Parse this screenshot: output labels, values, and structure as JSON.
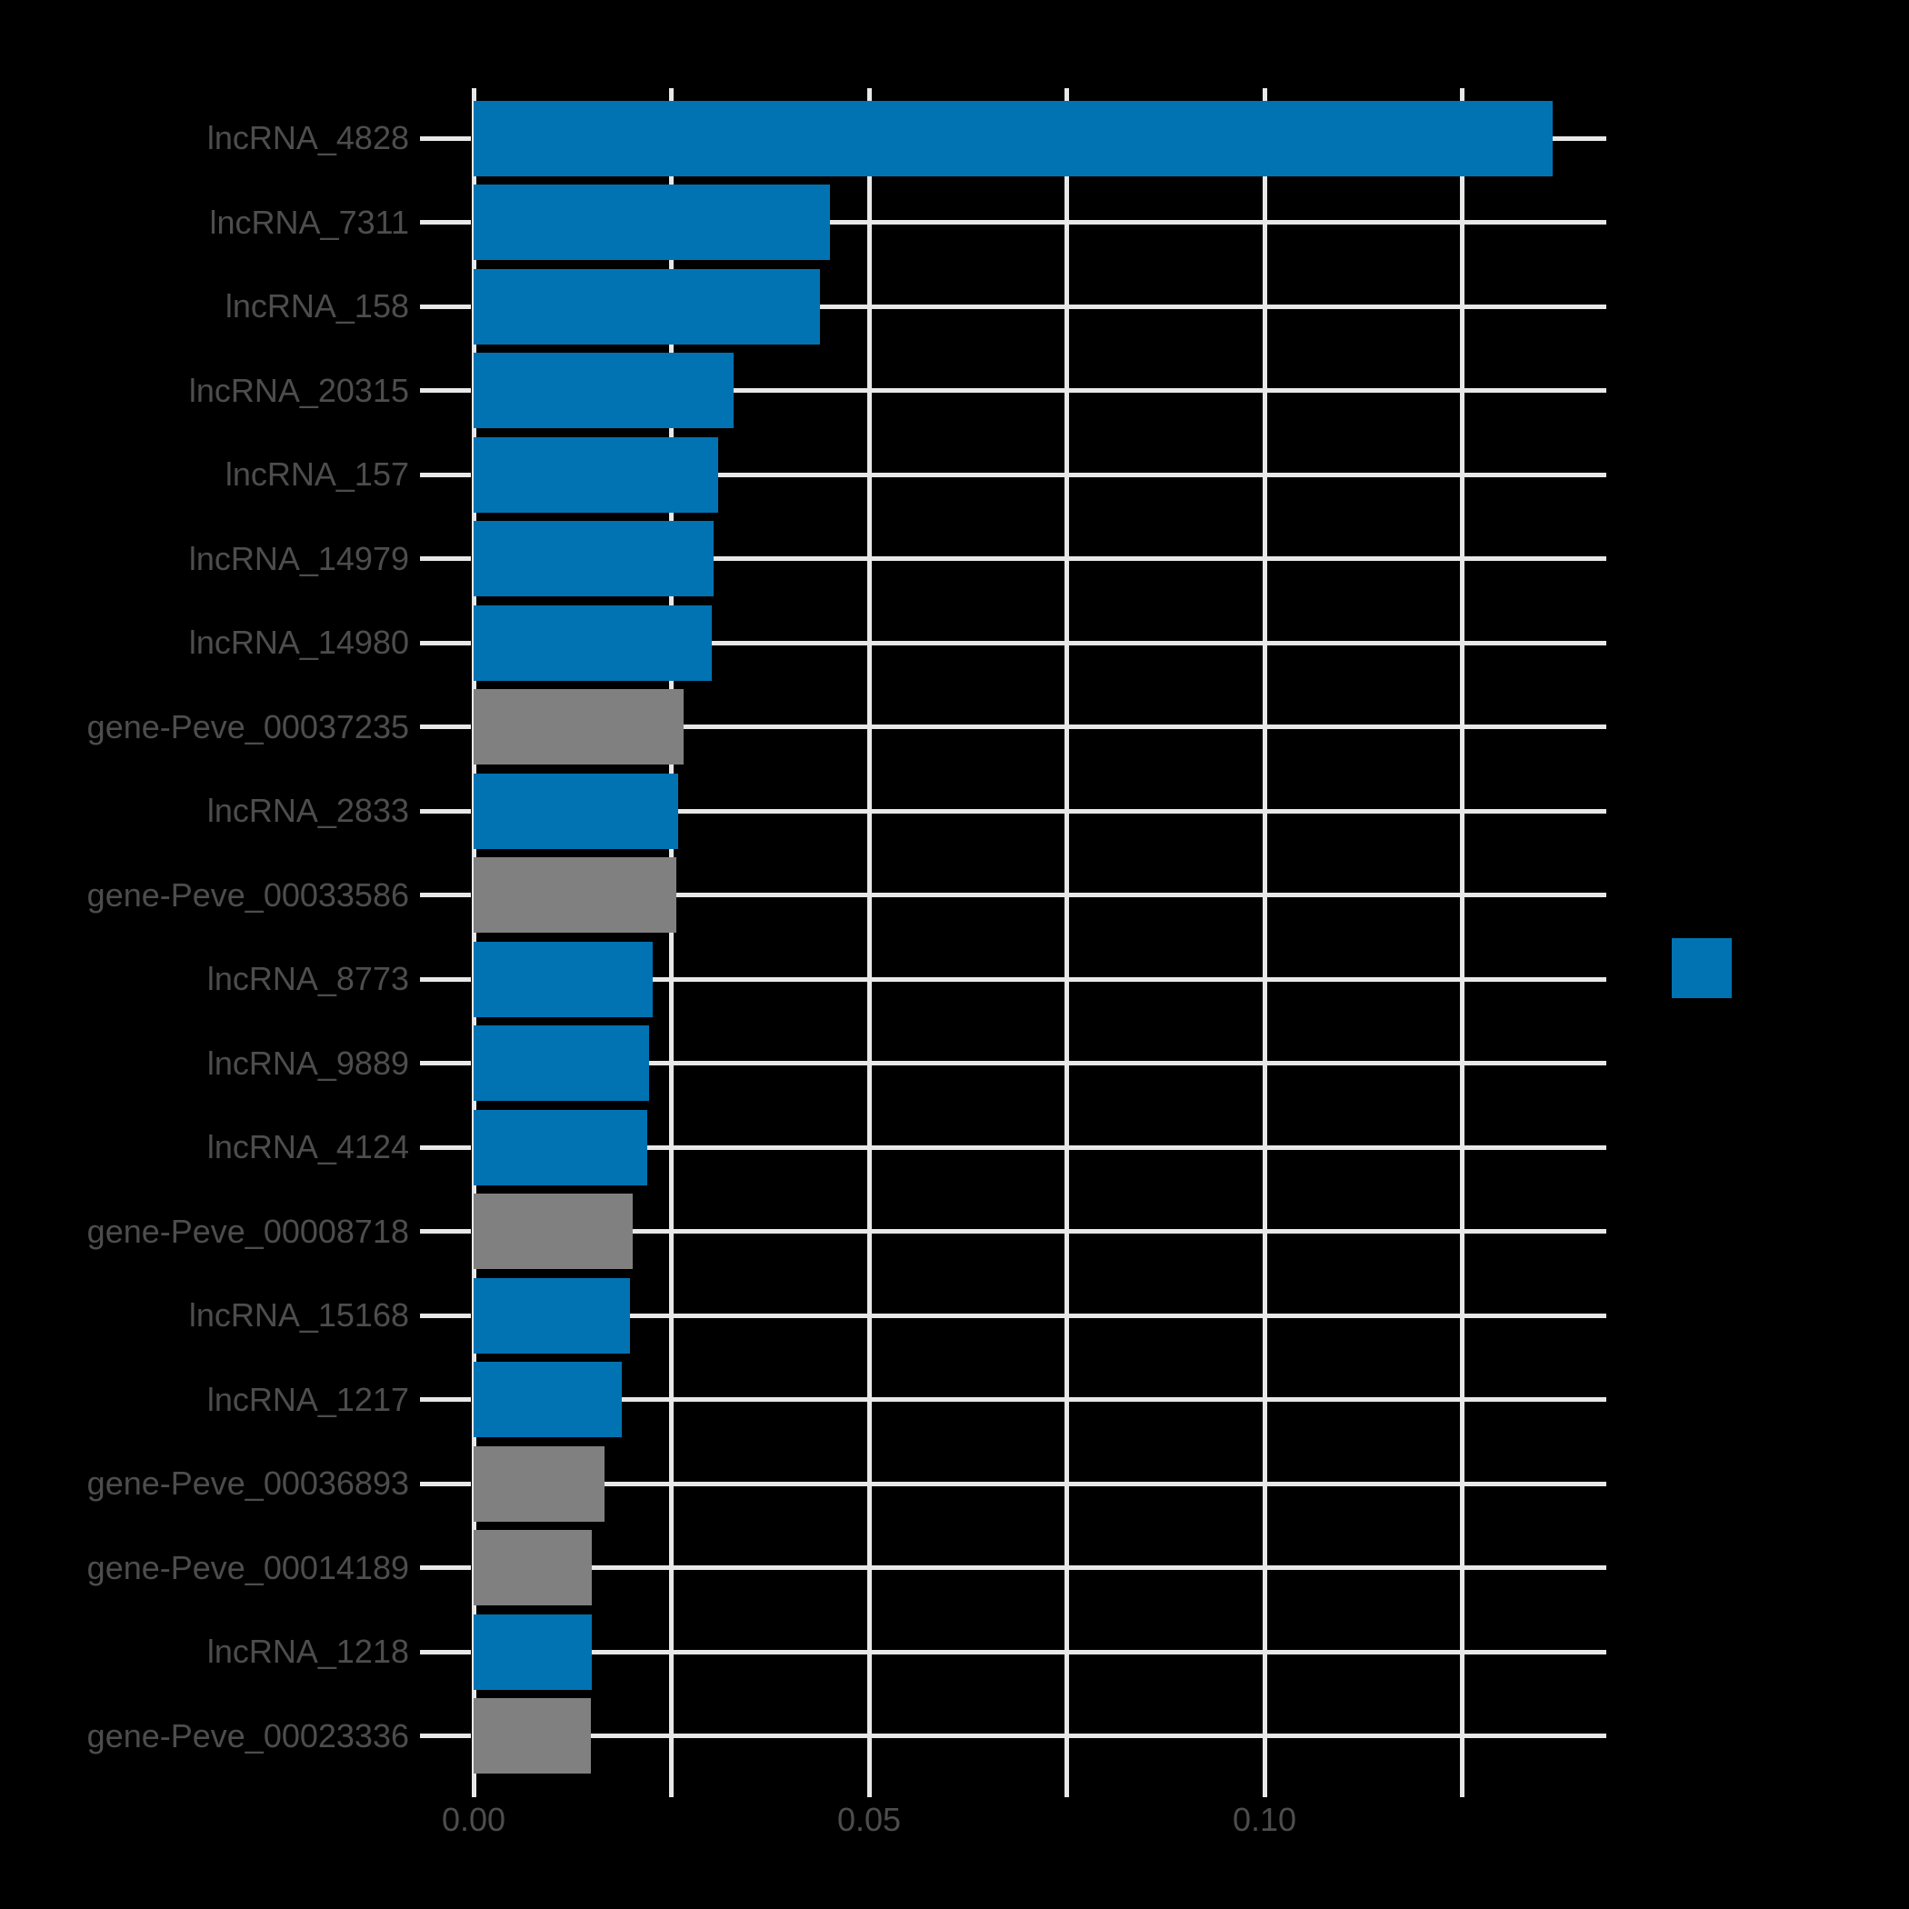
{
  "figure": {
    "background_color": "#000000",
    "title": ""
  },
  "style": {
    "grid_color": "#e8e8e8",
    "tick_label_color": "#4d4d4d",
    "lncRNA_bar_color": "#0173b2",
    "gene_bar_color": "#808080"
  },
  "chart_data": {
    "type": "bar",
    "orientation": "horizontal",
    "title": "",
    "xlabel": "",
    "ylabel": "",
    "grid": true,
    "xlim": [
      0,
      0.1433
    ],
    "categories": [
      "lncRNA_4828",
      "lncRNA_7311",
      "lncRNA_158",
      "lncRNA_20315",
      "lncRNA_157",
      "lncRNA_14979",
      "lncRNA_14980",
      "gene-Peve_00037235",
      "lncRNA_2833",
      "gene-Peve_00033586",
      "lncRNA_8773",
      "lncRNA_9889",
      "lncRNA_4124",
      "gene-Peve_00008718",
      "lncRNA_15168",
      "lncRNA_1217",
      "gene-Peve_00036893",
      "gene-Peve_00014189",
      "lncRNA_1218",
      "gene-Peve_00023336"
    ],
    "values": [
      0.1364,
      0.0451,
      0.0438,
      0.0329,
      0.0309,
      0.0303,
      0.0301,
      0.0266,
      0.0259,
      0.0256,
      0.0226,
      0.0222,
      0.022,
      0.0201,
      0.0198,
      0.0187,
      0.0166,
      0.0149,
      0.0149,
      0.0148
    ],
    "bar_colors": [
      "#0173b2",
      "#0173b2",
      "#0173b2",
      "#0173b2",
      "#0173b2",
      "#0173b2",
      "#0173b2",
      "#808080",
      "#0173b2",
      "#808080",
      "#0173b2",
      "#0173b2",
      "#0173b2",
      "#808080",
      "#0173b2",
      "#0173b2",
      "#808080",
      "#808080",
      "#0173b2",
      "#808080"
    ],
    "x_tick_labels": [
      "0.00",
      "0.05",
      "0.10"
    ],
    "x_tick_values": [
      0.0,
      0.05,
      0.1
    ],
    "x_gridline_values": [
      0.0,
      0.025,
      0.05,
      0.075,
      0.1,
      0.125
    ],
    "legend": {
      "position": "center-right",
      "items": [
        {
          "label": "",
          "color": "#0173b2"
        }
      ]
    }
  }
}
